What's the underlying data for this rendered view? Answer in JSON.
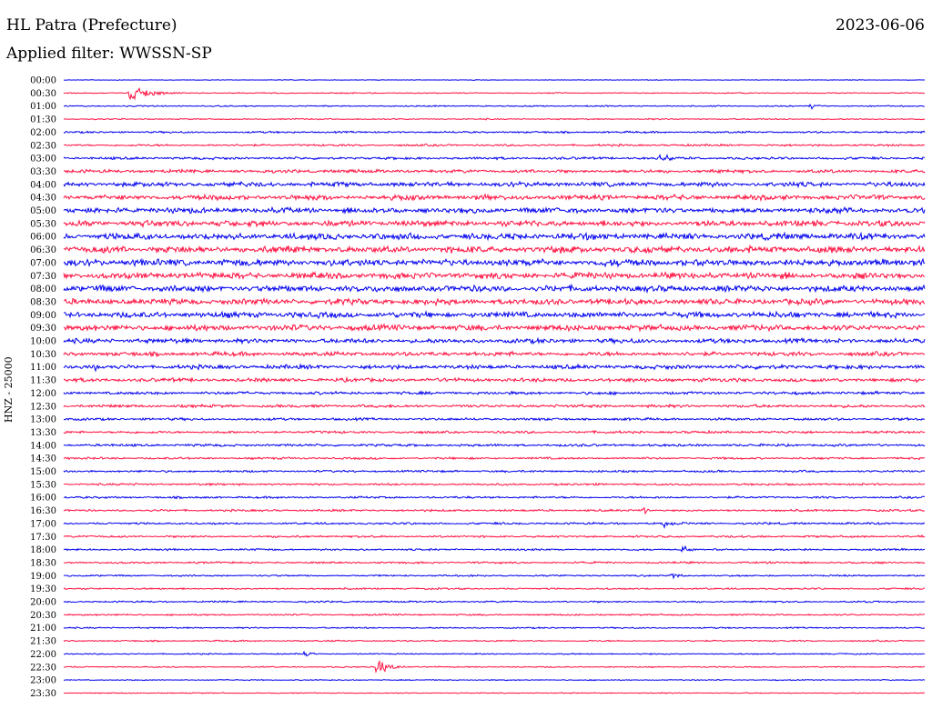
{
  "header": {
    "station": "HL Patra (Prefecture)",
    "date": "2023-06-06",
    "filter": "Applied filter: WWSSN-SP"
  },
  "colors": {
    "even_rows": "#0000ee",
    "odd_rows": "#ff1040"
  },
  "chart_data": {
    "type": "line",
    "title": "HL Patra (Prefecture)",
    "subtitle": "Applied filter: WWSSN-SP",
    "date": "2023-06-06",
    "ylabel": "HNZ - 25000",
    "xlabel": "",
    "description_kind": "helicorder",
    "row_labels": [
      "00:00",
      "00:30",
      "01:00",
      "01:30",
      "02:00",
      "02:30",
      "03:00",
      "03:30",
      "04:00",
      "04:30",
      "05:00",
      "05:30",
      "06:00",
      "06:30",
      "07:00",
      "07:30",
      "08:00",
      "08:30",
      "09:00",
      "09:30",
      "10:00",
      "10:30",
      "11:00",
      "11:30",
      "12:00",
      "12:30",
      "13:00",
      "13:30",
      "14:00",
      "14:30",
      "15:00",
      "15:30",
      "16:00",
      "16:30",
      "17:00",
      "17:30",
      "18:00",
      "18:30",
      "19:00",
      "19:30",
      "20:00",
      "20:30",
      "21:00",
      "21:30",
      "22:00",
      "22:30",
      "23:00",
      "23:30"
    ],
    "row_minutes": 30,
    "noise_level": [
      0.3,
      0.5,
      0.6,
      0.6,
      0.9,
      1.0,
      1.2,
      1.6,
      2.2,
      2.4,
      2.6,
      2.8,
      3.0,
      3.2,
      3.2,
      3.0,
      3.0,
      2.8,
      2.8,
      2.8,
      2.2,
      2.0,
      2.0,
      1.8,
      1.4,
      1.4,
      1.2,
      1.2,
      1.2,
      1.0,
      1.0,
      1.0,
      1.0,
      1.0,
      1.0,
      1.0,
      0.9,
      0.9,
      0.8,
      0.8,
      0.8,
      0.8,
      0.7,
      0.7,
      0.6,
      0.6,
      0.5,
      0.5
    ],
    "events": [
      {
        "row": "00:30",
        "minute": 2.3,
        "amplitude": 11,
        "duration_min": 1.8
      },
      {
        "row": "01:00",
        "minute": 26.0,
        "amplitude": 4,
        "duration_min": 0.8
      },
      {
        "row": "03:00",
        "minute": 20.8,
        "amplitude": 6,
        "duration_min": 1.5
      },
      {
        "row": "06:30",
        "minute": 3.6,
        "amplitude": 5,
        "duration_min": 1.0
      },
      {
        "row": "08:00",
        "minute": 8.0,
        "amplitude": 4,
        "duration_min": 0.6
      },
      {
        "row": "11:00",
        "minute": 1.1,
        "amplitude": 5,
        "duration_min": 0.6
      },
      {
        "row": "12:30",
        "minute": 18.7,
        "amplitude": 4,
        "duration_min": 0.8
      },
      {
        "row": "16:30",
        "minute": 20.2,
        "amplitude": 5,
        "duration_min": 0.8
      },
      {
        "row": "17:00",
        "minute": 20.9,
        "amplitude": 6,
        "duration_min": 0.9
      },
      {
        "row": "18:00",
        "minute": 21.5,
        "amplitude": 6,
        "duration_min": 0.9
      },
      {
        "row": "19:00",
        "minute": 21.2,
        "amplitude": 4,
        "duration_min": 1.0
      },
      {
        "row": "20:00",
        "minute": 28.0,
        "amplitude": 4,
        "duration_min": 0.8
      },
      {
        "row": "22:00",
        "minute": 8.4,
        "amplitude": 4,
        "duration_min": 0.8
      },
      {
        "row": "22:30",
        "minute": 10.9,
        "amplitude": 10,
        "duration_min": 1.2
      }
    ]
  }
}
